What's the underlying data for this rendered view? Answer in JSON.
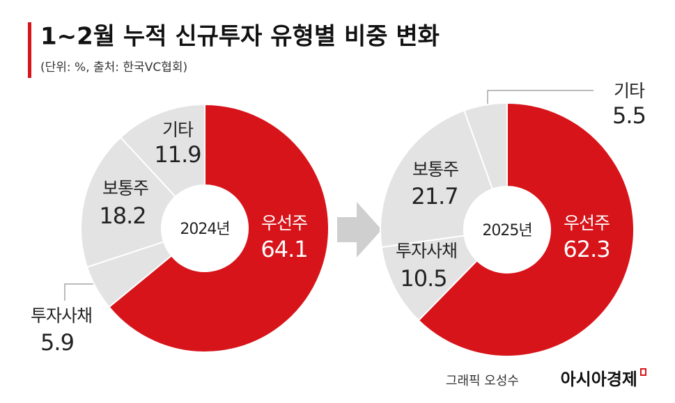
{
  "header": {
    "title": "1~2월 누적 신규투자 유형별 비중 변화",
    "subtitle": "(단위: %, 출처: 한국VC협회)"
  },
  "chart_data": [
    {
      "type": "pie",
      "title": "2024년",
      "categories": [
        "우선주",
        "투자사채",
        "보통주",
        "기타"
      ],
      "values": [
        64.1,
        5.9,
        18.2,
        11.9
      ],
      "colors": [
        "#d7141a",
        "#e3e3e3",
        "#e3e3e3",
        "#e3e3e3"
      ]
    },
    {
      "type": "pie",
      "title": "2025년",
      "categories": [
        "우선주",
        "투자사채",
        "보통주",
        "기타"
      ],
      "values": [
        62.3,
        10.5,
        21.7,
        5.5
      ],
      "colors": [
        "#d7141a",
        "#e3e3e3",
        "#e3e3e3",
        "#e3e3e3"
      ]
    }
  ],
  "footer": {
    "credit": "그래픽 오성수",
    "brand": "아시아경제"
  }
}
